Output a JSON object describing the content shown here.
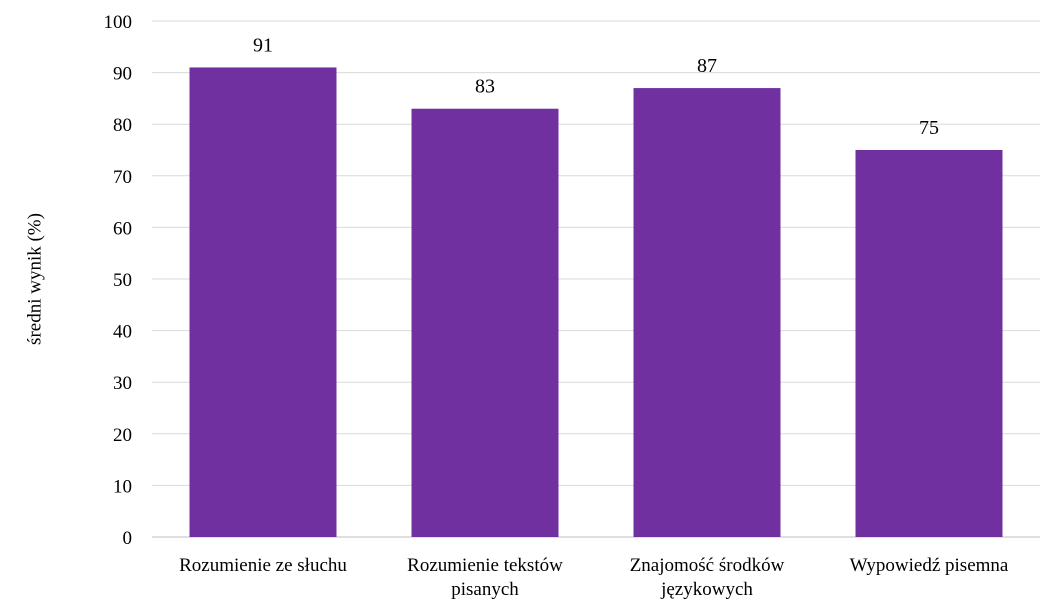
{
  "chart_data": {
    "type": "bar",
    "title": "",
    "xlabel": "",
    "ylabel": "średni wynik (%)",
    "categories": [
      [
        "Rozumienie ze słuchu"
      ],
      [
        "Rozumienie tekstów",
        "pisanych"
      ],
      [
        "Znajomość środków",
        "językowych"
      ],
      [
        "Wypowiedź pisemna"
      ]
    ],
    "values": [
      91,
      83,
      87,
      75
    ],
    "ylim": [
      0,
      100
    ],
    "yticks": [
      0,
      10,
      20,
      30,
      40,
      50,
      60,
      70,
      80,
      90,
      100
    ],
    "grid": true,
    "legend": "none",
    "bar_color": "#7030a0"
  }
}
